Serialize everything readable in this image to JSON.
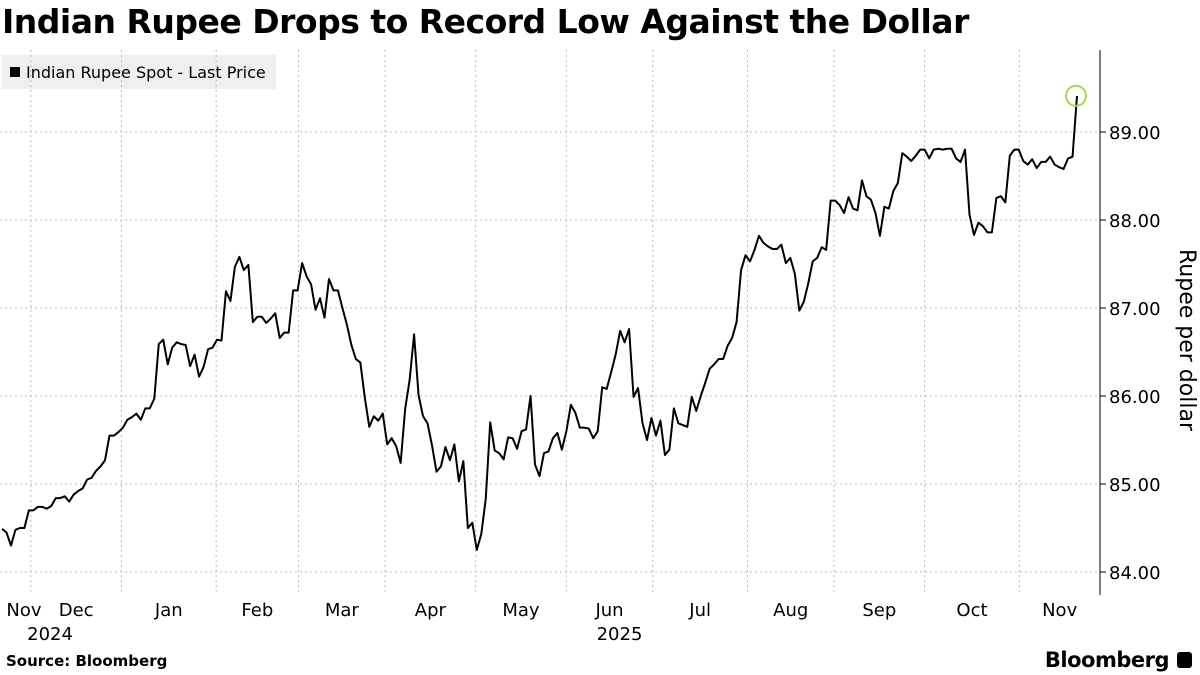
{
  "chart_data": {
    "type": "line",
    "title": "Indian Rupee Drops to Record Low Against the Dollar",
    "ylabel": "Rupee per dollar",
    "xlabel": "",
    "ylim": [
      83.8,
      90
    ],
    "yticks": [
      "84.00",
      "85.00",
      "86.00",
      "87.00",
      "88.00",
      "89.00"
    ],
    "ytick_values": [
      84,
      85,
      86,
      87,
      88,
      89
    ],
    "y_axis_side": "right",
    "grid": true,
    "legend_position": "top-left",
    "x_start": "2024-11-21",
    "x_end": "2025-11-21",
    "month_ticks": [
      {
        "date": "2024-11-01",
        "label": "Nov"
      },
      {
        "date": "2024-12-01",
        "label": "Dec"
      },
      {
        "date": "2025-01-01",
        "label": "Jan"
      },
      {
        "date": "2025-02-01",
        "label": "Feb"
      },
      {
        "date": "2025-03-01",
        "label": "Mar"
      },
      {
        "date": "2025-04-01",
        "label": "Apr"
      },
      {
        "date": "2025-05-01",
        "label": "May"
      },
      {
        "date": "2025-06-01",
        "label": "Jun"
      },
      {
        "date": "2025-07-01",
        "label": "Jul"
      },
      {
        "date": "2025-08-01",
        "label": "Aug"
      },
      {
        "date": "2025-09-01",
        "label": "Sep"
      },
      {
        "date": "2025-10-01",
        "label": "Oct"
      },
      {
        "date": "2025-11-01",
        "label": "Nov"
      }
    ],
    "year_labels": [
      {
        "label": "2024",
        "month": "Dec"
      },
      {
        "label": "2025",
        "month": "Jun"
      }
    ],
    "series": [
      {
        "name": "Indian Rupee Spot - Last Price",
        "color": "#000000",
        "values": [
          84.49,
          84.45,
          84.3,
          84.48,
          84.5,
          84.5,
          84.7,
          84.7,
          84.74,
          84.74,
          84.72,
          84.75,
          84.84,
          84.84,
          84.86,
          84.8,
          84.88,
          84.92,
          84.95,
          85.05,
          85.07,
          85.15,
          85.2,
          85.27,
          85.55,
          85.55,
          85.59,
          85.64,
          85.73,
          85.76,
          85.8,
          85.73,
          85.86,
          85.86,
          85.97,
          86.59,
          86.64,
          86.36,
          86.55,
          86.61,
          86.59,
          86.58,
          86.34,
          86.47,
          86.22,
          86.33,
          86.53,
          86.55,
          86.64,
          86.63,
          87.19,
          87.08,
          87.47,
          87.58,
          87.43,
          87.49,
          86.84,
          86.9,
          86.9,
          86.83,
          86.88,
          86.94,
          86.66,
          86.72,
          86.72,
          87.2,
          87.2,
          87.51,
          87.36,
          87.27,
          86.98,
          87.11,
          86.89,
          87.33,
          87.2,
          87.2,
          87.0,
          86.81,
          86.58,
          86.42,
          86.38,
          85.98,
          85.65,
          85.77,
          85.72,
          85.8,
          85.45,
          85.52,
          85.43,
          85.24,
          85.85,
          86.18,
          86.7,
          86.01,
          85.77,
          85.69,
          85.44,
          85.14,
          85.2,
          85.42,
          85.27,
          85.45,
          85.03,
          85.26,
          84.5,
          84.56,
          84.25,
          84.43,
          84.83,
          85.7,
          85.38,
          85.35,
          85.28,
          85.53,
          85.52,
          85.4,
          85.6,
          85.62,
          86.0,
          85.22,
          85.09,
          85.35,
          85.37,
          85.52,
          85.58,
          85.39,
          85.6,
          85.9,
          85.81,
          85.64,
          85.64,
          85.63,
          85.52,
          85.6,
          86.1,
          86.08,
          86.27,
          86.47,
          86.74,
          86.61,
          86.76,
          85.99,
          86.09,
          85.69,
          85.5,
          85.75,
          85.55,
          85.72,
          85.33,
          85.39,
          85.86,
          85.69,
          85.67,
          85.65,
          85.99,
          85.83,
          86.0,
          86.15,
          86.31,
          86.36,
          86.42,
          86.42,
          86.57,
          86.66,
          86.84,
          87.43,
          87.6,
          87.53,
          87.66,
          87.82,
          87.74,
          87.7,
          87.67,
          87.67,
          87.72,
          87.51,
          87.57,
          87.39,
          86.97,
          87.07,
          87.28,
          87.53,
          87.57,
          87.69,
          87.66,
          88.22,
          88.22,
          88.17,
          88.08,
          88.26,
          88.13,
          88.11,
          88.45,
          88.27,
          88.23,
          88.08,
          87.82,
          88.15,
          88.13,
          88.33,
          88.42,
          88.76,
          88.72,
          88.67,
          88.73,
          88.8,
          88.8,
          88.7,
          88.8,
          88.81,
          88.8,
          88.81,
          88.81,
          88.7,
          88.66,
          88.8,
          88.06,
          87.83,
          87.97,
          87.93,
          87.86,
          87.86,
          88.25,
          88.27,
          88.2,
          88.73,
          88.8,
          88.8,
          88.67,
          88.63,
          88.69,
          88.59,
          88.66,
          88.66,
          88.72,
          88.63,
          88.6,
          88.58,
          88.7,
          88.72,
          89.41
        ]
      }
    ],
    "annotation": {
      "type": "circle",
      "target": "last-point",
      "color": "#a6d94a"
    }
  },
  "source": "Source: Bloomberg",
  "brand": "Bloomberg"
}
